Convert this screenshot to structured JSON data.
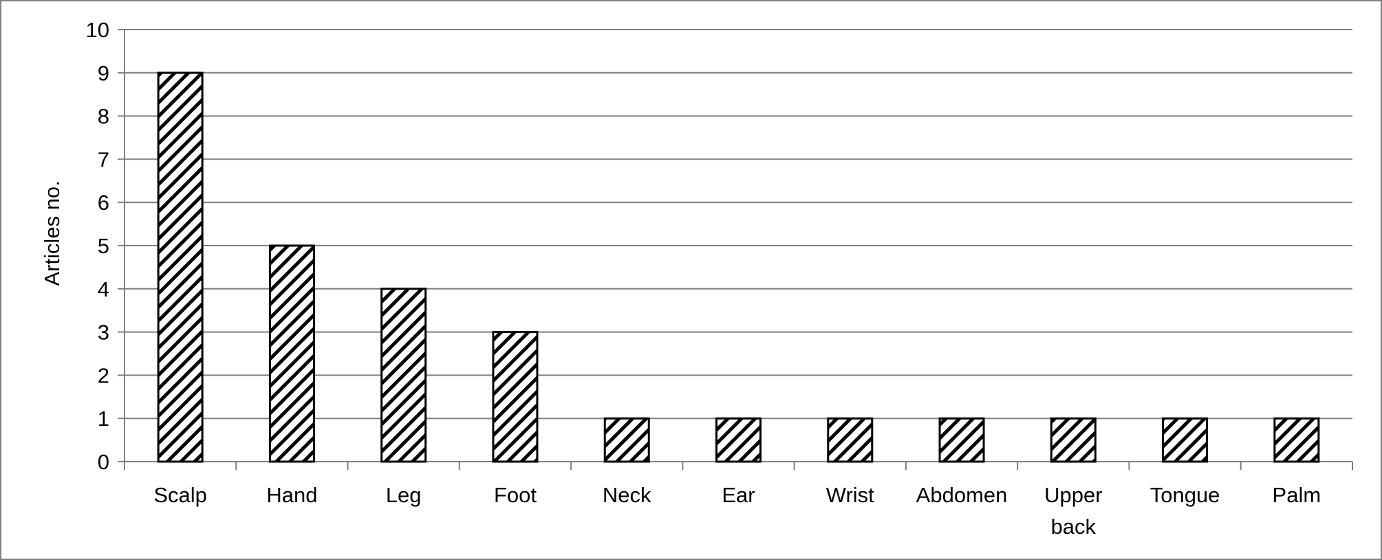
{
  "chart_data": {
    "type": "bar",
    "title": "",
    "xlabel": "",
    "ylabel": "Articles no.",
    "ylim": [
      0,
      10
    ],
    "yticks": [
      0,
      1,
      2,
      3,
      4,
      5,
      6,
      7,
      8,
      9,
      10
    ],
    "grid": true,
    "legend": "none",
    "bar_fill": "diagonal-hatch",
    "colors": {
      "bar_stroke": "#000000",
      "hatch": "#000000",
      "grid": "#7f7f7f",
      "axis": "#7f7f7f"
    },
    "categories": [
      [
        "Scalp"
      ],
      [
        "Hand"
      ],
      [
        "Leg"
      ],
      [
        "Foot"
      ],
      [
        "Neck"
      ],
      [
        "Ear"
      ],
      [
        "Wrist"
      ],
      [
        "Abdomen"
      ],
      [
        "Upper",
        "back"
      ],
      [
        "Tongue"
      ],
      [
        "Palm"
      ]
    ],
    "values": [
      9,
      5,
      4,
      3,
      1,
      1,
      1,
      1,
      1,
      1,
      1
    ]
  }
}
